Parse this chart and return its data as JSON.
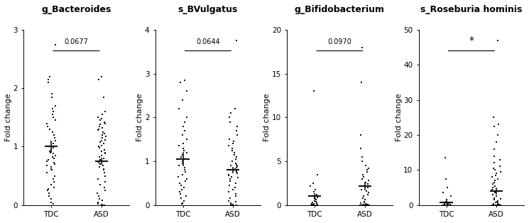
{
  "panels": [
    {
      "title": "g_Bacteroides",
      "pvalue": "0.0677",
      "pvalue_is_star": false,
      "ylabel": "Fold change",
      "ylim": [
        0,
        3
      ],
      "yticks": [
        0,
        1,
        2,
        3
      ],
      "groups": {
        "TDC": {
          "mean": 1.0,
          "sem": 0.09,
          "points": [
            2.75,
            2.2,
            2.15,
            2.1,
            1.9,
            1.85,
            1.7,
            1.65,
            1.6,
            1.55,
            1.5,
            1.45,
            1.4,
            1.35,
            1.3,
            1.25,
            1.2,
            1.15,
            1.1,
            1.05,
            1.0,
            0.98,
            0.95,
            0.92,
            0.9,
            0.88,
            0.85,
            0.82,
            0.8,
            0.78,
            0.75,
            0.72,
            0.7,
            0.68,
            0.65,
            0.62,
            0.6,
            0.55,
            0.5,
            0.45,
            0.4,
            0.35,
            0.3,
            0.25,
            0.2,
            0.15,
            0.1,
            0.05,
            0.02,
            0.28
          ]
        },
        "ASD": {
          "mean": 0.75,
          "sem": 0.05,
          "points": [
            2.2,
            2.15,
            1.85,
            1.6,
            1.55,
            1.5,
            1.48,
            1.45,
            1.42,
            1.4,
            1.38,
            1.35,
            1.32,
            1.3,
            1.28,
            1.25,
            1.22,
            1.2,
            1.18,
            1.15,
            1.12,
            1.1,
            1.08,
            1.05,
            1.02,
            1.0,
            0.98,
            0.95,
            0.92,
            0.9,
            0.88,
            0.85,
            0.82,
            0.8,
            0.78,
            0.75,
            0.72,
            0.7,
            0.68,
            0.65,
            0.62,
            0.6,
            0.55,
            0.5,
            0.45,
            0.4,
            0.35,
            0.3,
            0.25,
            0.2,
            0.15,
            0.1,
            0.08,
            0.05,
            0.02,
            0.01,
            0.0,
            0.0,
            0.0,
            0.0
          ]
        }
      }
    },
    {
      "title": "s_BVulgatus",
      "pvalue": "0.0644",
      "pvalue_is_star": false,
      "ylabel": "Fold change",
      "ylim": [
        0,
        4
      ],
      "yticks": [
        0,
        1,
        2,
        3,
        4
      ],
      "groups": {
        "TDC": {
          "mean": 1.05,
          "sem": 0.14,
          "points": [
            2.85,
            2.8,
            2.6,
            2.4,
            2.2,
            2.0,
            1.9,
            1.8,
            1.7,
            1.6,
            1.5,
            1.4,
            1.35,
            1.3,
            1.25,
            1.2,
            1.15,
            1.1,
            1.05,
            1.0,
            0.95,
            0.9,
            0.85,
            0.8,
            0.75,
            0.7,
            0.65,
            0.6,
            0.55,
            0.5,
            0.45,
            0.4,
            0.35,
            0.3,
            0.25,
            0.2,
            0.15,
            0.1,
            0.05,
            0.02
          ]
        },
        "ASD": {
          "mean": 0.8,
          "sem": 0.06,
          "points": [
            3.75,
            2.2,
            2.1,
            2.0,
            1.9,
            1.8,
            1.7,
            1.6,
            1.5,
            1.45,
            1.4,
            1.35,
            1.3,
            1.25,
            1.2,
            1.15,
            1.1,
            1.05,
            1.0,
            0.95,
            0.92,
            0.9,
            0.88,
            0.85,
            0.82,
            0.8,
            0.78,
            0.75,
            0.72,
            0.7,
            0.68,
            0.65,
            0.62,
            0.6,
            0.55,
            0.5,
            0.45,
            0.4,
            0.35,
            0.3,
            0.25,
            0.2,
            0.15,
            0.1,
            0.08,
            0.05,
            0.02,
            0.01,
            0.0,
            0.0,
            0.0,
            0.0
          ]
        }
      }
    },
    {
      "title": "g_Bifidobacterium",
      "pvalue": "0.0970",
      "pvalue_is_star": false,
      "ylabel": "Fold change",
      "ylim": [
        0,
        20
      ],
      "yticks": [
        0,
        5,
        10,
        15,
        20
      ],
      "groups": {
        "TDC": {
          "mean": 1.0,
          "sem": 0.3,
          "points": [
            13.0,
            3.5,
            2.5,
            2.2,
            1.8,
            1.5,
            1.2,
            1.0,
            0.9,
            0.8,
            0.7,
            0.6,
            0.5,
            0.4,
            0.3,
            0.2,
            0.15,
            0.1,
            0.08,
            0.05,
            0.03,
            0.02,
            0.01,
            0.0,
            0.0,
            0.0,
            0.0,
            0.0,
            0.0,
            0.0
          ]
        },
        "ASD": {
          "mean": 2.2,
          "sem": 0.4,
          "points": [
            18.0,
            14.0,
            8.0,
            6.5,
            5.5,
            5.0,
            4.5,
            4.2,
            4.0,
            3.8,
            3.5,
            3.2,
            3.0,
            2.8,
            2.6,
            2.4,
            2.2,
            2.0,
            1.8,
            1.6,
            1.4,
            1.2,
            1.0,
            0.8,
            0.6,
            0.4,
            0.3,
            0.2,
            0.1,
            0.08,
            0.05,
            0.02,
            0.01,
            0.0,
            0.0,
            0.0,
            0.0,
            0.0,
            0.0,
            0.0,
            0.0,
            0.0,
            0.0,
            0.0,
            0.0,
            0.0,
            0.0,
            0.0,
            0.0,
            0.0,
            0.0,
            0.0,
            0.0,
            0.0,
            0.0,
            0.0,
            0.0,
            0.0,
            0.0,
            0.0
          ]
        }
      }
    },
    {
      "title": "s_Roseburia hominis",
      "pvalue": "*",
      "pvalue_is_star": true,
      "ylabel": "Fold change",
      "ylim": [
        0,
        50
      ],
      "yticks": [
        0,
        10,
        20,
        30,
        40,
        50
      ],
      "groups": {
        "TDC": {
          "mean": 0.8,
          "sem": 0.4,
          "points": [
            13.5,
            7.5,
            5.0,
            3.5,
            2.5,
            1.5,
            1.0,
            0.8,
            0.6,
            0.5,
            0.4,
            0.3,
            0.2,
            0.15,
            0.1,
            0.05,
            0.02,
            0.01,
            0.0,
            0.0,
            0.0,
            0.0,
            0.0,
            0.0,
            0.0,
            0.0,
            0.0,
            0.0,
            0.0,
            0.0
          ]
        },
        "ASD": {
          "mean": 4.0,
          "sem": 0.9,
          "points": [
            47.0,
            25.0,
            23.0,
            22.5,
            20.0,
            18.0,
            16.0,
            14.0,
            13.0,
            12.0,
            11.0,
            10.5,
            10.0,
            9.5,
            9.0,
            8.5,
            8.0,
            7.5,
            7.0,
            6.5,
            6.0,
            5.5,
            5.0,
            4.5,
            4.0,
            3.5,
            3.0,
            2.5,
            2.0,
            1.8,
            1.5,
            1.2,
            1.0,
            0.8,
            0.6,
            0.4,
            0.2,
            0.1,
            0.05,
            0.02,
            0.01,
            0.0,
            0.0,
            0.0,
            0.0,
            0.0,
            0.0,
            0.0,
            0.0,
            0.0,
            0.0,
            0.0,
            0.0,
            0.0,
            0.0,
            0.0,
            0.0,
            0.0,
            0.0,
            0.0
          ]
        }
      }
    }
  ],
  "dot_color": "#111111",
  "marker_shape": "s",
  "mean_line_color": "#111111",
  "background_color": "#ffffff",
  "title_fontsize": 9,
  "tick_fontsize": 7.5,
  "label_fontsize": 8
}
